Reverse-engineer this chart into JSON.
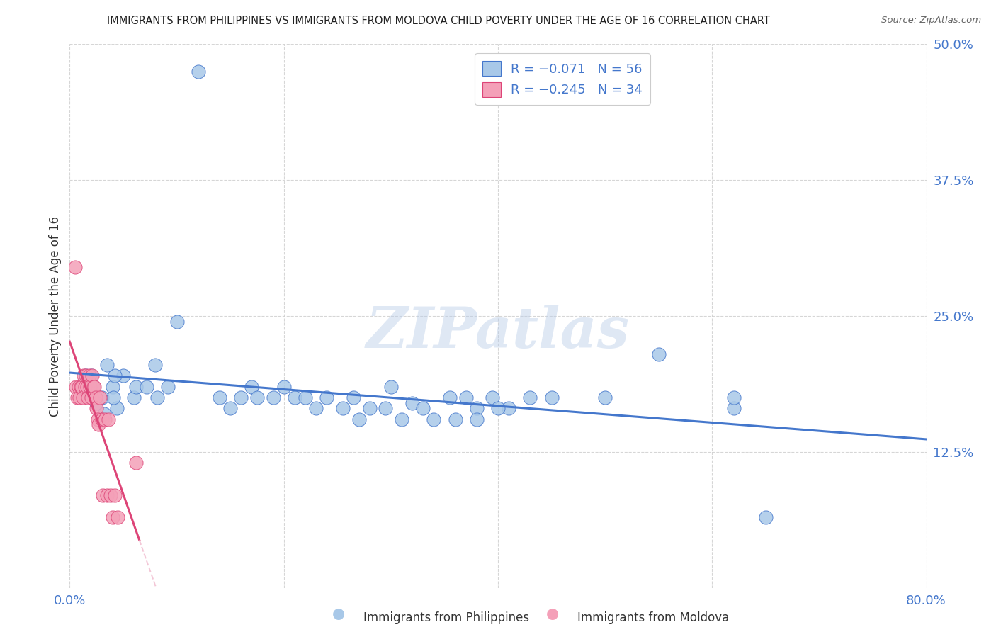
{
  "title": "IMMIGRANTS FROM PHILIPPINES VS IMMIGRANTS FROM MOLDOVA CHILD POVERTY UNDER THE AGE OF 16 CORRELATION CHART",
  "source": "Source: ZipAtlas.com",
  "ylabel": "Child Poverty Under the Age of 16",
  "xlabel_blue": "Immigrants from Philippines",
  "xlabel_pink": "Immigrants from Moldova",
  "xmin": 0.0,
  "xmax": 0.8,
  "ymin": 0.0,
  "ymax": 0.5,
  "yticks": [
    0.125,
    0.25,
    0.375,
    0.5
  ],
  "ytick_labels": [
    "12.5%",
    "25.0%",
    "37.5%",
    "50.0%"
  ],
  "xticks": [
    0.0,
    0.2,
    0.4,
    0.6,
    0.8
  ],
  "xtick_labels": [
    "0.0%",
    "",
    "",
    "",
    "80.0%"
  ],
  "legend_R_blue": "R = −0.071",
  "legend_N_blue": "N = 56",
  "legend_R_pink": "R = −0.245",
  "legend_N_pink": "N = 34",
  "color_blue": "#a8c8e8",
  "color_pink": "#f4a0b8",
  "line_blue": "#4477cc",
  "line_pink": "#dd4477",
  "line_pink_ext_color": "#f0b8cc",
  "watermark": "ZIPatlas",
  "blue_x": [
    0.12,
    0.02,
    0.03,
    0.015,
    0.04,
    0.05,
    0.025,
    0.06,
    0.022,
    0.032,
    0.08,
    0.042,
    0.044,
    0.062,
    0.041,
    0.072,
    0.082,
    0.092,
    0.1,
    0.035,
    0.14,
    0.15,
    0.16,
    0.17,
    0.175,
    0.19,
    0.2,
    0.21,
    0.22,
    0.23,
    0.24,
    0.255,
    0.265,
    0.27,
    0.28,
    0.295,
    0.3,
    0.31,
    0.32,
    0.33,
    0.34,
    0.355,
    0.37,
    0.38,
    0.395,
    0.41,
    0.43,
    0.45,
    0.36,
    0.38,
    0.4,
    0.5,
    0.55,
    0.62,
    0.62,
    0.65
  ],
  "blue_y": [
    0.475,
    0.195,
    0.175,
    0.195,
    0.185,
    0.195,
    0.17,
    0.175,
    0.185,
    0.16,
    0.205,
    0.195,
    0.165,
    0.185,
    0.175,
    0.185,
    0.175,
    0.185,
    0.245,
    0.205,
    0.175,
    0.165,
    0.175,
    0.185,
    0.175,
    0.175,
    0.185,
    0.175,
    0.175,
    0.165,
    0.175,
    0.165,
    0.175,
    0.155,
    0.165,
    0.165,
    0.185,
    0.155,
    0.17,
    0.165,
    0.155,
    0.175,
    0.175,
    0.165,
    0.175,
    0.165,
    0.175,
    0.175,
    0.155,
    0.155,
    0.165,
    0.175,
    0.215,
    0.165,
    0.175,
    0.065
  ],
  "pink_x": [
    0.005,
    0.006,
    0.007,
    0.008,
    0.009,
    0.01,
    0.011,
    0.012,
    0.013,
    0.014,
    0.015,
    0.016,
    0.017,
    0.018,
    0.019,
    0.02,
    0.021,
    0.022,
    0.023,
    0.024,
    0.025,
    0.026,
    0.027,
    0.028,
    0.03,
    0.031,
    0.033,
    0.035,
    0.036,
    0.038,
    0.04,
    0.042,
    0.045,
    0.062
  ],
  "pink_y": [
    0.295,
    0.185,
    0.175,
    0.185,
    0.175,
    0.185,
    0.185,
    0.175,
    0.195,
    0.185,
    0.195,
    0.185,
    0.175,
    0.195,
    0.185,
    0.175,
    0.195,
    0.185,
    0.185,
    0.175,
    0.165,
    0.155,
    0.15,
    0.175,
    0.155,
    0.085,
    0.155,
    0.085,
    0.155,
    0.085,
    0.065,
    0.085,
    0.065,
    0.115
  ]
}
